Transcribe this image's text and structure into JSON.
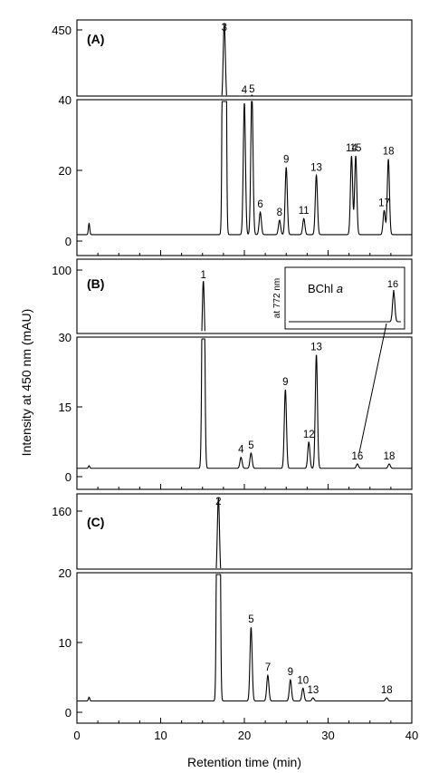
{
  "chart_data": {
    "type": "line",
    "xlabel": "Retention time (min)",
    "ylabel": "Intensity at 450 nm (mAU)",
    "xlim": [
      0,
      40
    ],
    "x_ticks": [
      "0",
      "10",
      "20",
      "30",
      "40"
    ],
    "line_color": "#000000",
    "panels": [
      {
        "label": "(A)",
        "y_ticks_lower": [
          "0",
          "20",
          "40"
        ],
        "y_ticks_upper": [
          "450"
        ],
        "peaks": [
          {
            "id": "3",
            "rt": 17.6,
            "height": 450
          },
          {
            "id": "4",
            "rt": 20.0,
            "height": 41
          },
          {
            "id": "5",
            "rt": 20.9,
            "height": 45
          },
          {
            "id": "6",
            "rt": 21.9,
            "height": 7
          },
          {
            "id": "8",
            "rt": 24.2,
            "height": 4.5
          },
          {
            "id": "9",
            "rt": 25.0,
            "height": 21
          },
          {
            "id": "11",
            "rt": 27.1,
            "height": 5
          },
          {
            "id": "13",
            "rt": 28.6,
            "height": 18.5
          },
          {
            "id": "14",
            "rt": 32.8,
            "height": 24.5
          },
          {
            "id": "15",
            "rt": 33.3,
            "height": 24.5
          },
          {
            "id": "17",
            "rt": 36.7,
            "height": 7.5
          },
          {
            "id": "18",
            "rt": 37.2,
            "height": 23.5
          }
        ]
      },
      {
        "label": "(B)",
        "y_ticks_lower": [
          "0",
          "15",
          "30"
        ],
        "y_ticks_upper": [
          "100"
        ],
        "peaks": [
          {
            "id": "1",
            "rt": 15.1,
            "height": 85
          },
          {
            "id": "4",
            "rt": 19.6,
            "height": 2.5
          },
          {
            "id": "5",
            "rt": 20.8,
            "height": 3.5
          },
          {
            "id": "9",
            "rt": 24.9,
            "height": 18
          },
          {
            "id": "12",
            "rt": 27.7,
            "height": 6
          },
          {
            "id": "13",
            "rt": 28.6,
            "height": 26
          },
          {
            "id": "16",
            "rt": 33.5,
            "height": 1
          },
          {
            "id": "18",
            "rt": 37.3,
            "height": 1
          }
        ],
        "inset": {
          "ylabel": "at 772 nm",
          "annotation": "BChl",
          "annotation_italic": "a",
          "peak_label": "16"
        }
      },
      {
        "label": "(C)",
        "y_ticks_lower": [
          "0",
          "10",
          "20"
        ],
        "y_ticks_upper": [
          "160"
        ],
        "peaks": [
          {
            "id": "2",
            "rt": 16.9,
            "height": 160
          },
          {
            "id": "5",
            "rt": 20.8,
            "height": 11.5
          },
          {
            "id": "7",
            "rt": 22.8,
            "height": 4
          },
          {
            "id": "9",
            "rt": 25.5,
            "height": 3.3
          },
          {
            "id": "10",
            "rt": 27.0,
            "height": 2
          },
          {
            "id": "13",
            "rt": 28.2,
            "height": 0.5
          },
          {
            "id": "18",
            "rt": 37.0,
            "height": 0.5
          }
        ]
      }
    ]
  }
}
